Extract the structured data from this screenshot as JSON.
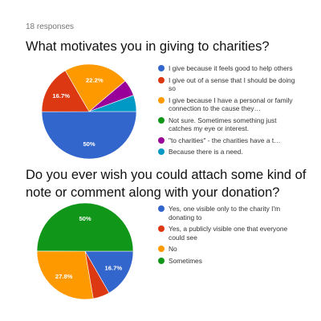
{
  "responses_label": "18 responses",
  "chart_data": [
    {
      "type": "pie",
      "title": "What motivates you in giving to charities?",
      "categories": [
        "I give because it feels good to help others",
        "I give out of a sense that I should be doing so",
        "I give because I have a personal or family connection to the cause they…",
        "Not sure. Sometimes something just catches my eye or interest.",
        "\"to charities\" - the charities have a t…",
        "Because there is a need."
      ],
      "values": [
        50,
        16.7,
        22.2,
        0,
        5.6,
        5.6
      ],
      "data_labels": [
        "50%",
        "16.7%",
        "22.2%",
        "",
        "",
        ""
      ],
      "colors": [
        "#3366cc",
        "#dc3912",
        "#ff9900",
        "#109618",
        "#990099",
        "#0099c6"
      ],
      "legend_position": "right"
    },
    {
      "type": "pie",
      "title": "Do you ever wish you could attach some kind of note or comment along  with your donation?",
      "categories": [
        "Yes, one visible only to the charity I'm donating to",
        "Yes, a publicly visible one that everyone could see",
        "No",
        "Sometimes"
      ],
      "values": [
        16.7,
        5.6,
        27.8,
        50
      ],
      "data_labels": [
        "16.7%",
        "",
        "27.8%",
        "50%"
      ],
      "colors": [
        "#3366cc",
        "#dc3912",
        "#ff9900",
        "#109618"
      ],
      "legend_position": "right"
    }
  ]
}
